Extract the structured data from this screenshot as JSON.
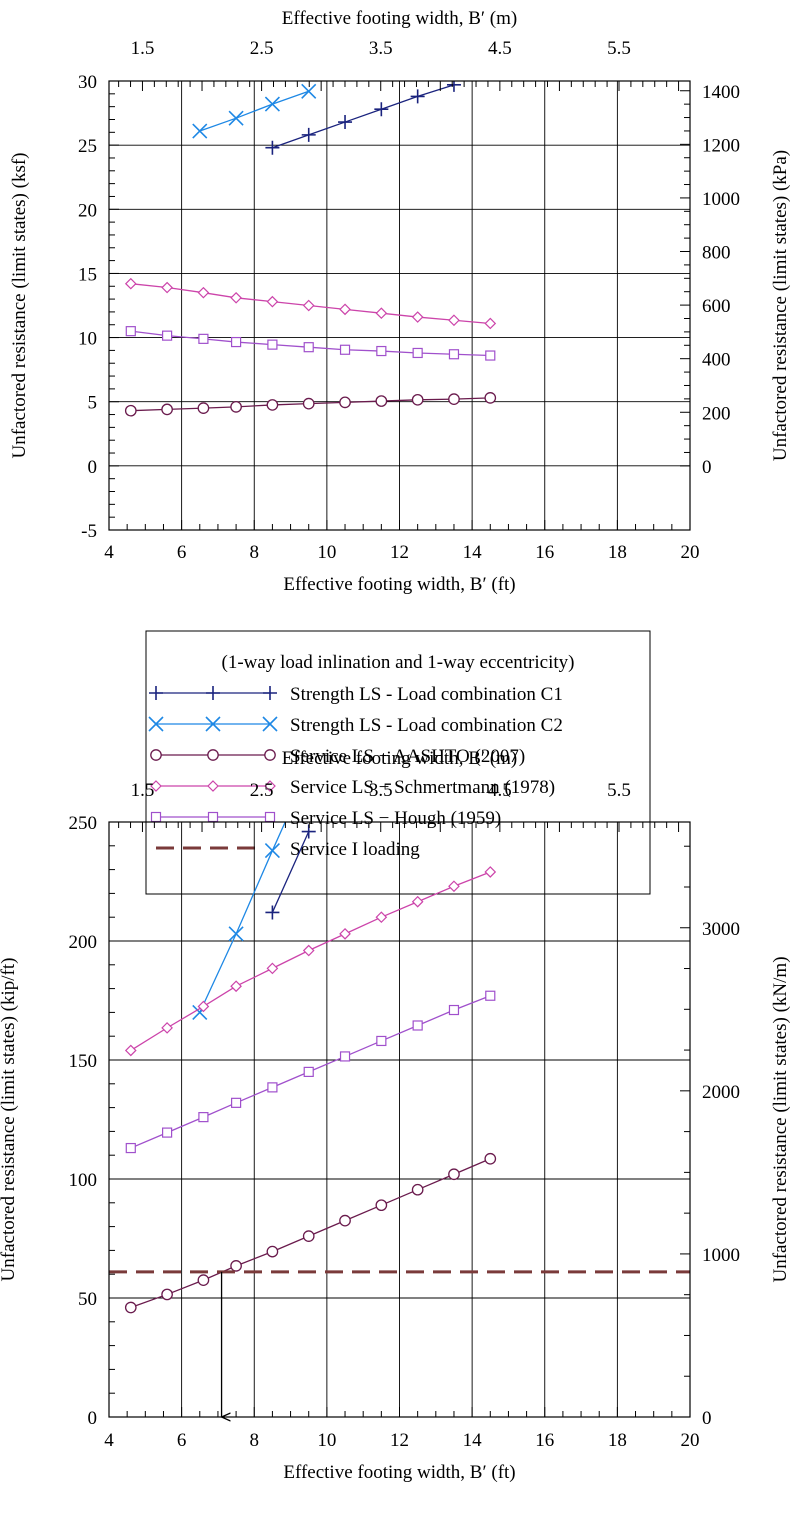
{
  "legend": {
    "title": "(1-way load inlination and 1-way eccentricity)",
    "entries": [
      {
        "label": "Strength LS - Load combination C1",
        "color": "#1a237e",
        "marker": "plus"
      },
      {
        "label": "Strength LS - Load combination C2",
        "color": "#1e88e5",
        "marker": "x"
      },
      {
        "label": "Service LS − AASHTO (2007)",
        "color": "#6a1b4d",
        "marker": "circle"
      },
      {
        "label": "Service LS − Schmertmann (1978)",
        "color": "#cc44aa",
        "marker": "diamond"
      },
      {
        "label": "Service LS − Hough (1959)",
        "color": "#a050cc",
        "marker": "square"
      },
      {
        "label": "Service I loading",
        "color": "#7a3a3a",
        "marker": "dash"
      }
    ]
  },
  "chart_data": [
    {
      "type": "line",
      "xlabel": "Effective footing width, B′ (ft)",
      "x2label": "Effective footing width, B′ (m)",
      "ylabel": "Unfactored resistance (limit states) (ksf)",
      "y2label": "Unfactored resistance (limit states) (kPa)",
      "xlim": [
        4,
        20
      ],
      "ylim": [
        -5,
        30
      ],
      "xticks": [
        4,
        6,
        8,
        10,
        12,
        14,
        16,
        18,
        20
      ],
      "yticks": [
        -5,
        0,
        5,
        10,
        15,
        20,
        25,
        30
      ],
      "x2ticks": [
        1.5,
        2.5,
        3.5,
        4.5,
        5.5
      ],
      "y2ticks": [
        0,
        200,
        400,
        600,
        800,
        1000,
        1200,
        1400
      ],
      "grid": true,
      "series": [
        {
          "name": "Strength LS - Load combination C1",
          "x": [
            8.5,
            9.5,
            10.5,
            11.5,
            12.5,
            13.5
          ],
          "y": [
            24.8,
            25.8,
            26.8,
            27.8,
            28.8,
            29.7
          ]
        },
        {
          "name": "Strength LS - Load combination C2",
          "x": [
            6.5,
            7.5,
            8.5,
            9.5
          ],
          "y": [
            26.1,
            27.1,
            28.2,
            29.2
          ]
        },
        {
          "name": "Service LS − AASHTO (2007)",
          "x": [
            4.6,
            5.6,
            6.6,
            7.5,
            8.5,
            9.5,
            10.5,
            11.5,
            12.5,
            13.5,
            14.5
          ],
          "y": [
            4.3,
            4.4,
            4.5,
            4.6,
            4.75,
            4.85,
            4.95,
            5.05,
            5.15,
            5.2,
            5.3
          ]
        },
        {
          "name": "Service LS − Schmertmann (1978)",
          "x": [
            4.6,
            5.6,
            6.6,
            7.5,
            8.5,
            9.5,
            10.5,
            11.5,
            12.5,
            13.5,
            14.5
          ],
          "y": [
            14.2,
            13.9,
            13.5,
            13.1,
            12.8,
            12.5,
            12.2,
            11.9,
            11.6,
            11.35,
            11.1
          ]
        },
        {
          "name": "Service LS − Hough (1959)",
          "x": [
            4.6,
            5.6,
            6.6,
            7.5,
            8.5,
            9.5,
            10.5,
            11.5,
            12.5,
            13.5,
            14.5
          ],
          "y": [
            10.5,
            10.15,
            9.9,
            9.65,
            9.45,
            9.25,
            9.05,
            8.95,
            8.8,
            8.7,
            8.6
          ]
        }
      ]
    },
    {
      "type": "line",
      "xlabel": "Effective footing width, B′ (ft)",
      "x2label": "Effective footing width, B′ (m)",
      "ylabel": "Unfactored resistance (limit states) (kip/ft)",
      "y2label": "Unfactored resistance (limit states) (kN/m)",
      "xlim": [
        4,
        20
      ],
      "ylim": [
        0,
        250
      ],
      "xticks": [
        4,
        6,
        8,
        10,
        12,
        14,
        16,
        18,
        20
      ],
      "yticks": [
        0,
        50,
        100,
        150,
        200,
        250
      ],
      "x2ticks": [
        1.5,
        2.5,
        3.5,
        4.5,
        5.5
      ],
      "y2ticks": [
        0,
        1000,
        2000,
        3000
      ],
      "grid": true,
      "series": [
        {
          "name": "Strength LS - Load combination C1",
          "x": [
            8.5,
            9.5
          ],
          "y": [
            212,
            246
          ]
        },
        {
          "name": "Strength LS - Load combination C2",
          "x": [
            6.5,
            7.5,
            8.5,
            9.0
          ],
          "y": [
            170,
            203,
            238,
            255
          ]
        },
        {
          "name": "Service LS − AASHTO (2007)",
          "x": [
            4.6,
            5.6,
            6.6,
            7.5,
            8.5,
            9.5,
            10.5,
            11.5,
            12.5,
            13.5,
            14.5
          ],
          "y": [
            46,
            51.5,
            57.5,
            63.5,
            69.5,
            76,
            82.5,
            89,
            95.5,
            102,
            108.5
          ]
        },
        {
          "name": "Service LS − Schmertmann (1978)",
          "x": [
            4.6,
            5.6,
            6.6,
            7.5,
            8.5,
            9.5,
            10.5,
            11.5,
            12.5,
            13.5,
            14.5
          ],
          "y": [
            154,
            163.5,
            172.5,
            181,
            188.5,
            196,
            203,
            210,
            216.5,
            223,
            229
          ]
        },
        {
          "name": "Service LS − Hough (1959)",
          "x": [
            4.6,
            5.6,
            6.6,
            7.5,
            8.5,
            9.5,
            10.5,
            11.5,
            12.5,
            13.5,
            14.5
          ],
          "y": [
            113,
            119.5,
            126,
            132,
            138.5,
            145,
            151.5,
            158,
            164.5,
            171,
            177
          ]
        },
        {
          "name": "Service I loading",
          "y_constant": 61
        }
      ],
      "annotation": {
        "type": "arrow",
        "x": 7.1,
        "from_y": 61,
        "to_y": 0
      }
    }
  ]
}
